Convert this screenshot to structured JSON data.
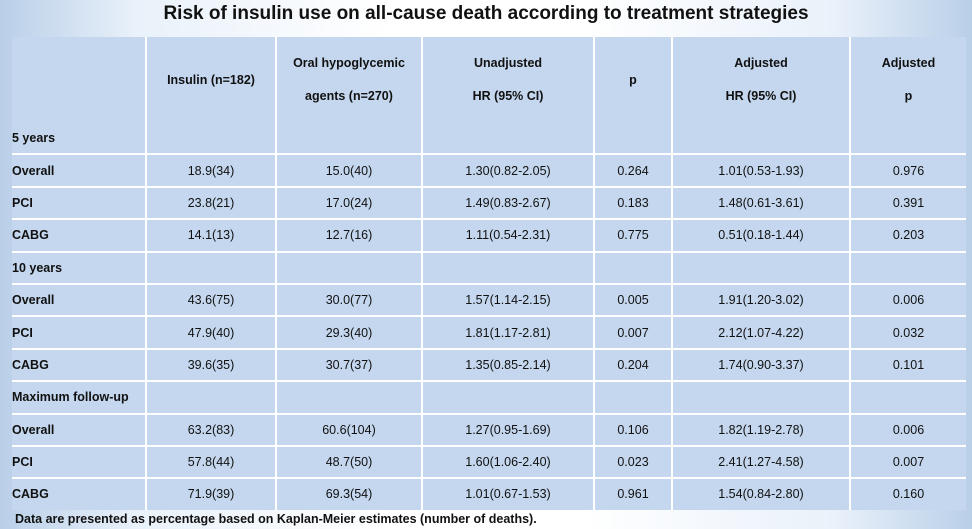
{
  "title": "Risk of insulin use on all-cause death according to treatment strategies",
  "table": {
    "headers": [
      {
        "line1": "",
        "line2": ""
      },
      {
        "line1": "Insulin (n=182)",
        "line2": ""
      },
      {
        "line1": "Oral hypoglycemic",
        "line2": "agents (n=270)"
      },
      {
        "line1": "Unadjusted",
        "line2": "HR (95%  CI)"
      },
      {
        "line1": "p",
        "line2": ""
      },
      {
        "line1": "Adjusted",
        "line2": "HR (95%  CI)"
      },
      {
        "line1": "Adjusted",
        "line2": "p"
      }
    ],
    "rows": [
      {
        "label": "5 years",
        "section": true,
        "cells": [
          "",
          "",
          "",
          "",
          "",
          ""
        ]
      },
      {
        "label": "Overall",
        "cells": [
          "18.9(34)",
          "15.0(40)",
          "1.30(0.82-2.05)",
          "0.264",
          "1.01(0.53-1.93)",
          "0.976"
        ]
      },
      {
        "label": "PCI",
        "cells": [
          "23.8(21)",
          "17.0(24)",
          "1.49(0.83-2.67)",
          "0.183",
          "1.48(0.61-3.61)",
          "0.391"
        ]
      },
      {
        "label": "CABG",
        "cells": [
          "14.1(13)",
          "12.7(16)",
          "1.11(0.54-2.31)",
          "0.775",
          "0.51(0.18-1.44)",
          "0.203"
        ]
      },
      {
        "label": "10 years",
        "section": true,
        "cells": [
          "",
          "",
          "",
          "",
          "",
          ""
        ]
      },
      {
        "label": "Overall",
        "cells": [
          "43.6(75)",
          "30.0(77)",
          "1.57(1.14-2.15)",
          "0.005",
          "1.91(1.20-3.02)",
          "0.006"
        ]
      },
      {
        "label": "PCI",
        "cells": [
          "47.9(40)",
          "29.3(40)",
          "1.81(1.17-2.81)",
          "0.007",
          "2.12(1.07-4.22)",
          "0.032"
        ]
      },
      {
        "label": "CABG",
        "cells": [
          "39.6(35)",
          "30.7(37)",
          "1.35(0.85-2.14)",
          "0.204",
          "1.74(0.90-3.37)",
          "0.101"
        ]
      },
      {
        "label": "Maximum follow-up",
        "section": true,
        "cells": [
          "",
          "",
          "",
          "",
          "",
          ""
        ]
      },
      {
        "label": "Overall",
        "cells": [
          "63.2(83)",
          "60.6(104)",
          "1.27(0.95-1.69)",
          "0.106",
          "1.82(1.19-2.78)",
          "0.006"
        ]
      },
      {
        "label": "PCI",
        "cells": [
          "57.8(44)",
          "48.7(50)",
          "1.60(1.06-2.40)",
          "0.023",
          "2.41(1.27-4.58)",
          "0.007"
        ]
      },
      {
        "label": "CABG",
        "cells": [
          "71.9(39)",
          "69.3(54)",
          "1.01(0.67-1.53)",
          "0.961",
          "1.54(0.84-2.80)",
          "0.160"
        ]
      }
    ]
  },
  "footnote": "Data are presented as percentage based on Kaplan-Meier estimates (number of deaths).",
  "colors": {
    "table_fill": "#c4d7ee",
    "grid_line": "#ffffff",
    "side_gradient": "#b9cfe8"
  }
}
